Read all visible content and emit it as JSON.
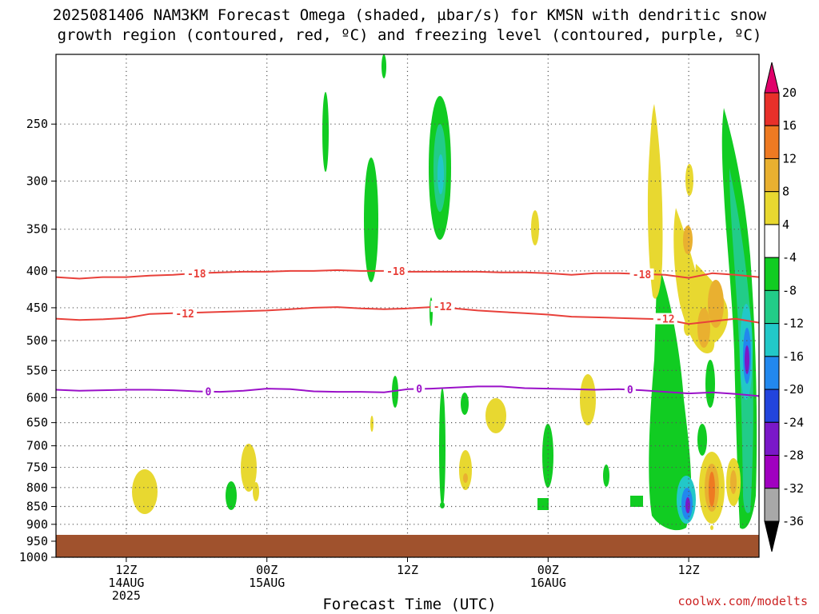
{
  "title_line1": "2025081406 NAM3KM Forecast Omega (shaded, µbar/s) for KMSN with dendritic snow",
  "title_line2": "growth region (contoured, red, ºC) and freezing level (contoured, purple, ºC)",
  "xlabel": "Forecast Time (UTC)",
  "credit": "coolwx.com/modelts",
  "chart_data": {
    "type": "heatmap",
    "y_axis": {
      "ticks": [
        250,
        300,
        350,
        400,
        450,
        500,
        550,
        600,
        650,
        700,
        750,
        800,
        850,
        900,
        950,
        1000
      ],
      "range": [
        200,
        1000
      ],
      "grid": "dotted"
    },
    "x_axis": {
      "ticks": [
        {
          "hour": 6,
          "lines": [
            "12Z",
            "14AUG",
            "2025"
          ]
        },
        {
          "hour": 18,
          "lines": [
            "00Z",
            "15AUG"
          ]
        },
        {
          "hour": 30,
          "lines": [
            "12Z"
          ]
        },
        {
          "hour": 42,
          "lines": [
            "00Z",
            "16AUG"
          ]
        },
        {
          "hour": 54,
          "lines": [
            "12Z"
          ]
        }
      ],
      "range": [
        0,
        60
      ],
      "grid": "dotted"
    },
    "colorbar": {
      "labels": [
        "20",
        "16",
        "12",
        "8",
        "4",
        "-4",
        "-8",
        "-12",
        "-16",
        "-20",
        "-24",
        "-28",
        "-32",
        "-36"
      ],
      "colors": [
        "#e0006a",
        "#e8302a",
        "#ee7a22",
        "#e9b030",
        "#e8d830",
        "#ffffff",
        "#11cc22",
        "#22cc88",
        "#22c8c8",
        "#2288ee",
        "#2244dd",
        "#7a18c8",
        "#a000c0",
        "#a8a8a8",
        "#000000"
      ]
    },
    "contours": [
      {
        "value": "-18",
        "color": "#e8403a",
        "points": [
          [
            0,
            408
          ],
          [
            2,
            410
          ],
          [
            4,
            408
          ],
          [
            6,
            408
          ],
          [
            8,
            406
          ],
          [
            10,
            405
          ],
          [
            12,
            403
          ],
          [
            14,
            402
          ],
          [
            16,
            401
          ],
          [
            18,
            401
          ],
          [
            20,
            400
          ],
          [
            22,
            400
          ],
          [
            24,
            399
          ],
          [
            26,
            400
          ],
          [
            28,
            400
          ],
          [
            30,
            401
          ],
          [
            32,
            401
          ],
          [
            34,
            401
          ],
          [
            36,
            401
          ],
          [
            38,
            402
          ],
          [
            40,
            402
          ],
          [
            42,
            403
          ],
          [
            44,
            405
          ],
          [
            46,
            403
          ],
          [
            48,
            403
          ],
          [
            50,
            404
          ],
          [
            52,
            405
          ],
          [
            54,
            409
          ],
          [
            56,
            403
          ],
          [
            58,
            405
          ],
          [
            60,
            408
          ]
        ],
        "labels": [
          [
            12,
            403
          ],
          [
            29,
            400
          ],
          [
            50,
            404
          ]
        ]
      },
      {
        "value": "-12",
        "color": "#e8403a",
        "points": [
          [
            0,
            466
          ],
          [
            2,
            468
          ],
          [
            4,
            467
          ],
          [
            6,
            465
          ],
          [
            8,
            459
          ],
          [
            10,
            458
          ],
          [
            12,
            457
          ],
          [
            14,
            456
          ],
          [
            16,
            455
          ],
          [
            18,
            454
          ],
          [
            20,
            452
          ],
          [
            22,
            450
          ],
          [
            24,
            449
          ],
          [
            26,
            451
          ],
          [
            28,
            452
          ],
          [
            30,
            451
          ],
          [
            32,
            449
          ],
          [
            34,
            451
          ],
          [
            36,
            454
          ],
          [
            38,
            456
          ],
          [
            40,
            458
          ],
          [
            42,
            460
          ],
          [
            44,
            463
          ],
          [
            46,
            464
          ],
          [
            48,
            465
          ],
          [
            50,
            466
          ],
          [
            52,
            467
          ],
          [
            54,
            474
          ],
          [
            56,
            470
          ],
          [
            58,
            466
          ],
          [
            60,
            472
          ]
        ],
        "labels": [
          [
            11,
            458
          ],
          [
            33,
            448
          ],
          [
            52,
            466
          ]
        ]
      },
      {
        "value": "0",
        "color": "#9a10c8",
        "points": [
          [
            0,
            585
          ],
          [
            2,
            587
          ],
          [
            4,
            586
          ],
          [
            6,
            585
          ],
          [
            8,
            585
          ],
          [
            10,
            586
          ],
          [
            12,
            588
          ],
          [
            14,
            589
          ],
          [
            16,
            587
          ],
          [
            18,
            583
          ],
          [
            20,
            584
          ],
          [
            22,
            588
          ],
          [
            24,
            589
          ],
          [
            26,
            589
          ],
          [
            28,
            590
          ],
          [
            30,
            584
          ],
          [
            32,
            583
          ],
          [
            34,
            581
          ],
          [
            36,
            579
          ],
          [
            38,
            579
          ],
          [
            40,
            582
          ],
          [
            42,
            583
          ],
          [
            44,
            584
          ],
          [
            46,
            585
          ],
          [
            48,
            584
          ],
          [
            50,
            586
          ],
          [
            52,
            589
          ],
          [
            54,
            592
          ],
          [
            56,
            590
          ],
          [
            58,
            593
          ],
          [
            60,
            597
          ]
        ],
        "labels": [
          [
            13,
            588
          ],
          [
            31,
            583
          ],
          [
            49,
            584
          ]
        ]
      }
    ],
    "surface": {
      "color": "#a0522d",
      "label": "below ground"
    }
  }
}
